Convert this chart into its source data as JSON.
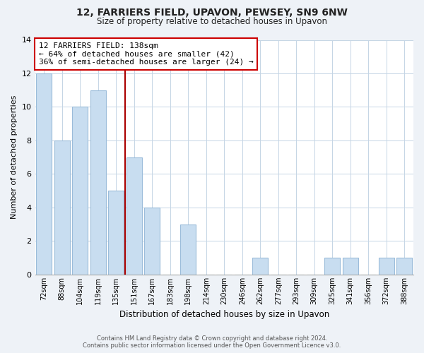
{
  "title": "12, FARRIERS FIELD, UPAVON, PEWSEY, SN9 6NW",
  "subtitle": "Size of property relative to detached houses in Upavon",
  "xlabel": "Distribution of detached houses by size in Upavon",
  "ylabel": "Number of detached properties",
  "bin_labels": [
    "72sqm",
    "88sqm",
    "104sqm",
    "119sqm",
    "135sqm",
    "151sqm",
    "167sqm",
    "183sqm",
    "198sqm",
    "214sqm",
    "230sqm",
    "246sqm",
    "262sqm",
    "277sqm",
    "293sqm",
    "309sqm",
    "325sqm",
    "341sqm",
    "356sqm",
    "372sqm",
    "388sqm"
  ],
  "values": [
    12,
    8,
    10,
    11,
    5,
    7,
    4,
    0,
    3,
    0,
    0,
    0,
    1,
    0,
    0,
    0,
    1,
    1,
    0,
    1,
    1
  ],
  "property_bin_index": 4,
  "bar_color": "#c8ddf0",
  "bar_edge_color": "#9bbcda",
  "marker_line_color": "#aa0000",
  "annotation_text_line1": "12 FARRIERS FIELD: 138sqm",
  "annotation_text_line2": "← 64% of detached houses are smaller (42)",
  "annotation_text_line3": "36% of semi-detached houses are larger (24) →",
  "annotation_box_color": "#ffffff",
  "annotation_box_edge_color": "#cc0000",
  "footer_line1": "Contains HM Land Registry data © Crown copyright and database right 2024.",
  "footer_line2": "Contains public sector information licensed under the Open Government Licence v3.0.",
  "ylim": [
    0,
    14
  ],
  "background_color": "#eef2f7",
  "plot_background_color": "#ffffff",
  "grid_color": "#c5d5e5",
  "title_color": "#222222",
  "footer_color": "#555555"
}
